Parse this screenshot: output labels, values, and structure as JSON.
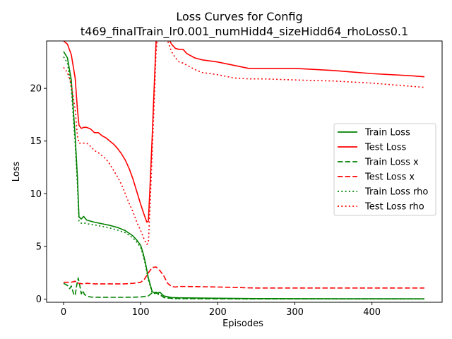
{
  "chart_data": {
    "type": "line",
    "title": "Loss Curves for Config",
    "subtitle": "t469_finalTrain_lr0.001_numHidd4_sizeHidd64_rhoLoss0.1",
    "xlabel": "Episodes",
    "ylabel": "Loss",
    "xlim": [
      -22,
      491
    ],
    "ylim": [
      -0.3,
      24.5
    ],
    "xticks": [
      0,
      100,
      200,
      300,
      400
    ],
    "yticks": [
      0,
      5,
      10,
      15,
      20
    ],
    "grid": false,
    "legend_position": "right",
    "series": [
      {
        "name": "Train Loss",
        "color": "#008000",
        "style": "solid",
        "x": [
          0,
          5,
          10,
          15,
          18,
          20,
          23,
          26,
          30,
          35,
          40,
          50,
          60,
          70,
          80,
          90,
          95,
          100,
          103,
          106,
          110,
          115,
          120,
          125,
          130,
          140,
          150,
          200,
          250,
          300,
          350,
          400,
          468
        ],
        "y": [
          23.5,
          22.9,
          20.8,
          15.5,
          11.5,
          7.8,
          7.6,
          7.85,
          7.5,
          7.4,
          7.3,
          7.15,
          7.0,
          6.8,
          6.5,
          6.0,
          5.6,
          5.1,
          4.4,
          3.5,
          2.0,
          0.7,
          0.55,
          0.65,
          0.3,
          0.15,
          0.12,
          0.08,
          0.05,
          0.04,
          0.03,
          0.03,
          0.02
        ]
      },
      {
        "name": "Test Loss",
        "color": "#ff0000",
        "style": "solid",
        "x": [
          0,
          5,
          10,
          15,
          18,
          20,
          23,
          26,
          30,
          35,
          40,
          45,
          50,
          55,
          60,
          65,
          70,
          75,
          80,
          85,
          90,
          95,
          100,
          105,
          108,
          110,
          112,
          115,
          118,
          120,
          122,
          124,
          126,
          130,
          135,
          140,
          145,
          150,
          155,
          160,
          170,
          180,
          200,
          220,
          240,
          260,
          300,
          350,
          400,
          450,
          468
        ],
        "y": [
          24.5,
          24.2,
          23.2,
          21.0,
          18.0,
          16.5,
          16.2,
          16.3,
          16.3,
          16.15,
          15.8,
          15.8,
          15.5,
          15.3,
          15.0,
          14.7,
          14.3,
          13.8,
          13.2,
          12.4,
          11.4,
          10.2,
          9.0,
          7.9,
          7.3,
          7.4,
          10.5,
          15.5,
          21.0,
          24.5,
          25.5,
          26.5,
          26.5,
          26.0,
          24.9,
          24.2,
          23.8,
          23.7,
          23.7,
          23.3,
          22.9,
          22.7,
          22.5,
          22.2,
          21.9,
          21.9,
          21.9,
          21.7,
          21.4,
          21.2,
          21.1
        ]
      },
      {
        "name": "Train Loss x",
        "color": "#008000",
        "style": "dashed",
        "x": [
          0,
          5,
          8,
          10,
          13,
          15,
          17,
          19,
          21,
          23,
          25,
          27,
          30,
          35,
          40,
          60,
          80,
          100,
          110,
          115,
          120,
          125,
          130,
          140,
          150,
          200,
          300,
          400,
          468
        ],
        "y": [
          1.5,
          1.3,
          1.0,
          1.25,
          0.5,
          0.35,
          1.3,
          2.0,
          1.3,
          0.5,
          0.8,
          0.45,
          0.3,
          0.2,
          0.18,
          0.17,
          0.17,
          0.2,
          0.3,
          0.6,
          0.65,
          0.45,
          0.15,
          0.08,
          0.06,
          0.03,
          0.02,
          0.02,
          0.02
        ]
      },
      {
        "name": "Test Loss x",
        "color": "#ff0000",
        "style": "dashed",
        "x": [
          0,
          5,
          10,
          15,
          18,
          20,
          25,
          30,
          40,
          60,
          80,
          90,
          100,
          105,
          110,
          115,
          120,
          125,
          130,
          135,
          140,
          145,
          150,
          160,
          200,
          250,
          300,
          400,
          468
        ],
        "y": [
          1.6,
          1.6,
          1.6,
          1.7,
          1.55,
          1.5,
          1.45,
          1.5,
          1.45,
          1.45,
          1.45,
          1.5,
          1.6,
          1.9,
          2.5,
          3.0,
          3.05,
          2.7,
          2.2,
          1.5,
          1.2,
          1.15,
          1.2,
          1.2,
          1.15,
          1.05,
          1.05,
          1.05,
          1.05
        ]
      },
      {
        "name": "Train Loss rho",
        "color": "#008000",
        "style": "dotted",
        "x": [
          0,
          5,
          10,
          15,
          18,
          20,
          23,
          26,
          30,
          35,
          40,
          50,
          60,
          70,
          80,
          90,
          95,
          100,
          103,
          106,
          110,
          115,
          120,
          125,
          130,
          140,
          150,
          200,
          300,
          400,
          468
        ],
        "y": [
          23.0,
          22.4,
          20.0,
          14.8,
          10.8,
          7.4,
          7.2,
          7.25,
          7.15,
          7.1,
          7.05,
          6.9,
          6.75,
          6.55,
          6.3,
          5.8,
          5.4,
          4.9,
          4.2,
          3.3,
          1.8,
          0.6,
          0.5,
          0.4,
          0.15,
          0.05,
          0.03,
          0.02,
          0.01,
          0.01,
          0.01
        ]
      },
      {
        "name": "Test Loss rho",
        "color": "#ff0000",
        "style": "dotted",
        "x": [
          0,
          5,
          10,
          15,
          18,
          20,
          23,
          26,
          30,
          35,
          40,
          45,
          50,
          55,
          60,
          65,
          70,
          75,
          80,
          85,
          90,
          95,
          100,
          105,
          108,
          110,
          112,
          115,
          118,
          120,
          123,
          126,
          130,
          135,
          140,
          145,
          150,
          155,
          160,
          170,
          180,
          200,
          220,
          240,
          260,
          300,
          350,
          400,
          450,
          468
        ],
        "y": [
          22.0,
          21.5,
          20.4,
          18.0,
          15.5,
          14.8,
          14.8,
          14.8,
          14.8,
          14.5,
          14.1,
          13.9,
          13.6,
          13.3,
          12.8,
          12.2,
          11.6,
          10.9,
          10.0,
          9.1,
          8.3,
          7.3,
          6.5,
          5.6,
          5.2,
          5.3,
          8.5,
          14.0,
          19.5,
          23.5,
          25.5,
          26.0,
          25.8,
          24.5,
          23.5,
          22.9,
          22.5,
          22.4,
          22.2,
          21.8,
          21.5,
          21.3,
          21.0,
          20.9,
          20.9,
          20.8,
          20.7,
          20.5,
          20.2,
          20.1
        ]
      }
    ]
  }
}
